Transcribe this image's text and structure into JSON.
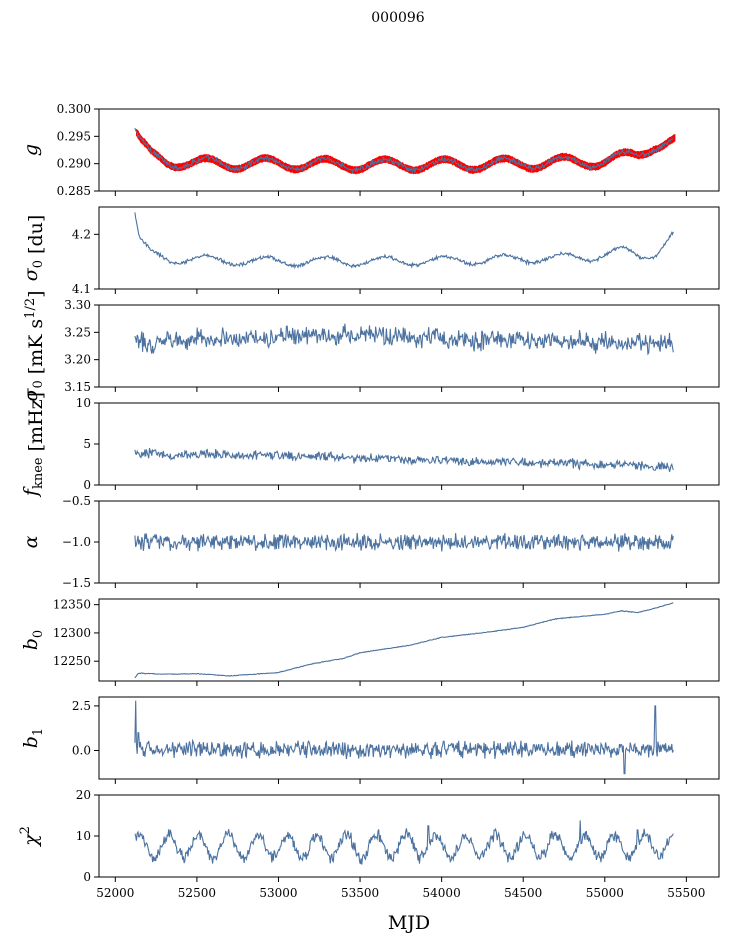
{
  "figure": {
    "title": "000096",
    "xlabel": "MJD",
    "colors": {
      "series": "#4c72a0",
      "model": "#ff0000",
      "axis": "#000000"
    }
  },
  "chart_data": [
    {
      "type": "line",
      "key": "g",
      "ylabel": "g",
      "ylabel_html": "g",
      "xlim": [
        51900,
        55700
      ],
      "ylim": [
        0.285,
        0.3
      ],
      "yticks": [
        0.285,
        0.29,
        0.295,
        0.3
      ],
      "ytick_labels": [
        "0.285",
        "0.290",
        "0.295",
        "0.300"
      ],
      "x_start": 52120,
      "x_end": 55420,
      "trend_x": [
        52120,
        52160,
        52220,
        52320,
        52500,
        53000,
        53500,
        54000,
        54500,
        55000,
        55200,
        55300,
        55420
      ],
      "trend_y": [
        0.2958,
        0.2935,
        0.2915,
        0.2905,
        0.29,
        0.29,
        0.2898,
        0.2898,
        0.29,
        0.2905,
        0.2915,
        0.2935,
        0.294
      ],
      "period": 365,
      "amplitude": 0.001,
      "noise": 0.0003,
      "series": [
        {
          "name": "g",
          "color": "#4c72a0"
        },
        {
          "name": "g model",
          "color": "#ff0000",
          "band": 0.0008
        }
      ]
    },
    {
      "type": "line",
      "key": "sigma0_du",
      "ylabel": "σ0 [du]",
      "xlim": [
        51900,
        55700
      ],
      "ylim": [
        4.1,
        4.25
      ],
      "yticks": [
        4.1,
        4.2
      ],
      "ytick_labels": [
        "4.1",
        "4.2"
      ],
      "x_start": 52120,
      "x_end": 55420,
      "trend_x": [
        52120,
        52150,
        52220,
        52350,
        53000,
        54000,
        54900,
        55100,
        55200,
        55300,
        55420
      ],
      "trend_y": [
        4.235,
        4.185,
        4.165,
        4.155,
        4.15,
        4.152,
        4.158,
        4.17,
        4.16,
        4.165,
        4.2
      ],
      "period": 365,
      "amplitude": 0.008,
      "noise": 0.002,
      "series": [
        {
          "name": "sigma0",
          "color": "#4c72a0"
        }
      ]
    },
    {
      "type": "line",
      "key": "sigma0_mK",
      "ylabel": "σ0 [mK s1/2]",
      "xlim": [
        51900,
        55700
      ],
      "ylim": [
        3.15,
        3.3
      ],
      "yticks": [
        3.15,
        3.2,
        3.25,
        3.3
      ],
      "ytick_labels": [
        "3.15",
        "3.20",
        "3.25",
        "3.30"
      ],
      "x_start": 52120,
      "x_end": 55420,
      "trend_x": [
        52120,
        52400,
        53000,
        53500,
        54000,
        54500,
        55000,
        55420
      ],
      "trend_y": [
        3.228,
        3.238,
        3.242,
        3.245,
        3.238,
        3.235,
        3.233,
        3.228
      ],
      "period": 180,
      "amplitude": 0.004,
      "noise": 0.01,
      "series": [
        {
          "name": "sigma0 mK",
          "color": "#4c72a0"
        }
      ]
    },
    {
      "type": "line",
      "key": "fknee",
      "ylabel": "fknee [mHz]",
      "xlim": [
        51900,
        55700
      ],
      "ylim": [
        0,
        10
      ],
      "yticks": [
        0,
        5,
        10
      ],
      "ytick_labels": [
        "0",
        "5",
        "10"
      ],
      "x_start": 52120,
      "x_end": 55420,
      "trend_x": [
        52120,
        52500,
        53000,
        53500,
        54000,
        54500,
        55000,
        55420
      ],
      "trend_y": [
        3.8,
        3.7,
        3.6,
        3.3,
        3.0,
        2.8,
        2.5,
        2.2
      ],
      "period": 365,
      "amplitude": 0.1,
      "noise": 0.35,
      "series": [
        {
          "name": "fknee",
          "color": "#4c72a0"
        }
      ]
    },
    {
      "type": "line",
      "key": "alpha",
      "ylabel": "α",
      "xlim": [
        51900,
        55700
      ],
      "ylim": [
        -1.5,
        -0.5
      ],
      "yticks": [
        -1.5,
        -1.0,
        -0.5
      ],
      "ytick_labels": [
        "−1.5",
        "−1.0",
        "−0.5"
      ],
      "x_start": 52120,
      "x_end": 55420,
      "trend_x": [
        52120,
        55420
      ],
      "trend_y": [
        -1.0,
        -1.0
      ],
      "period": 365,
      "amplitude": 0.0,
      "noise": 0.06,
      "series": [
        {
          "name": "alpha",
          "color": "#4c72a0"
        }
      ]
    },
    {
      "type": "line",
      "key": "b0",
      "ylabel": "b0",
      "xlim": [
        51900,
        55700
      ],
      "ylim": [
        12215,
        12360
      ],
      "yticks": [
        12250,
        12300,
        12350
      ],
      "ytick_labels": [
        "12250",
        "12300",
        "12350"
      ],
      "x_start": 52120,
      "x_end": 55420,
      "trend_x": [
        52120,
        52140,
        52300,
        52500,
        52700,
        52900,
        53000,
        53200,
        53400,
        53500,
        53800,
        54000,
        54300,
        54500,
        54700,
        55000,
        55100,
        55200,
        55300,
        55420
      ],
      "trend_y": [
        12220,
        12229,
        12227,
        12228,
        12224,
        12228,
        12230,
        12245,
        12255,
        12265,
        12278,
        12292,
        12302,
        12310,
        12325,
        12333,
        12339,
        12336,
        12343,
        12353
      ],
      "period": 365,
      "amplitude": 0.0,
      "noise": 0.4,
      "series": [
        {
          "name": "b0",
          "color": "#4c72a0"
        }
      ]
    },
    {
      "type": "line",
      "key": "b1",
      "ylabel": "b1",
      "xlim": [
        51900,
        55700
      ],
      "ylim": [
        -1.6,
        3.0
      ],
      "yticks": [
        0.0,
        2.5
      ],
      "ytick_labels": [
        "0.0",
        "2.5"
      ],
      "x_start": 52120,
      "x_end": 55420,
      "trend_x": [
        52120,
        55420
      ],
      "trend_y": [
        0.05,
        0.05
      ],
      "period": 365,
      "amplitude": 0.0,
      "noise": 0.28,
      "spikes": [
        [
          52125,
          2.8
        ],
        [
          52140,
          1.0
        ],
        [
          55120,
          -1.3
        ],
        [
          55310,
          2.5
        ]
      ],
      "series": [
        {
          "name": "b1",
          "color": "#4c72a0"
        }
      ]
    },
    {
      "type": "line",
      "key": "chi2",
      "ylabel": "χ2",
      "xlim": [
        51900,
        55700
      ],
      "ylim": [
        0,
        20
      ],
      "yticks": [
        0,
        10,
        20
      ],
      "ytick_labels": [
        "0",
        "10",
        "20"
      ],
      "x_start": 52120,
      "x_end": 55420,
      "trend_x": [
        52120,
        55420
      ],
      "trend_y": [
        7.5,
        7.5
      ],
      "period": 182,
      "amplitude": 2.8,
      "noise": 0.9,
      "spikes": [
        [
          53920,
          12.5
        ],
        [
          54850,
          13.8
        ],
        [
          55200,
          11.5
        ]
      ],
      "series": [
        {
          "name": "chi2",
          "color": "#4c72a0"
        }
      ]
    }
  ],
  "xaxis": {
    "ticks": [
      52000,
      52500,
      53000,
      53500,
      54000,
      54500,
      55000,
      55500
    ],
    "tick_labels": [
      "52000",
      "52500",
      "53000",
      "53500",
      "54000",
      "54500",
      "55000",
      "55500"
    ]
  }
}
